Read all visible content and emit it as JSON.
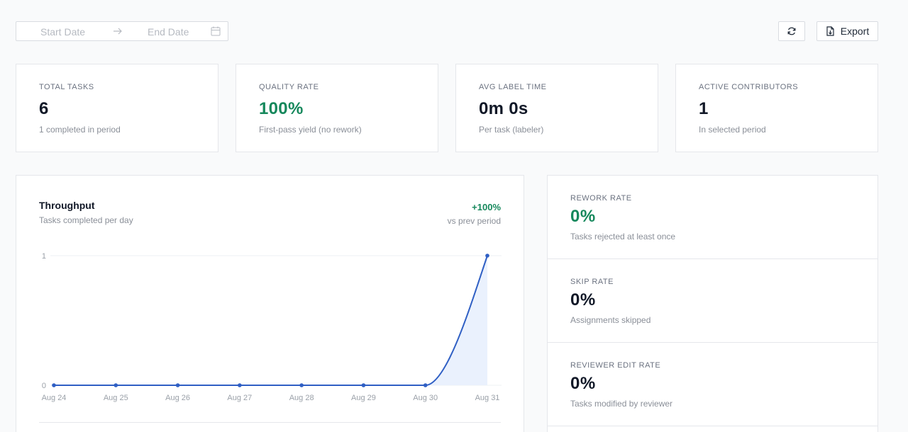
{
  "toolbar": {
    "start_placeholder": "Start Date",
    "end_placeholder": "End Date",
    "export_label": "Export"
  },
  "kpis": [
    {
      "label": "TOTAL TASKS",
      "value": "6",
      "sub": "1 completed in period"
    },
    {
      "label": "QUALITY RATE",
      "value": "100%",
      "sub": "First-pass yield (no rework)"
    },
    {
      "label": "AVG LABEL TIME",
      "value": "0m 0s",
      "sub": "Per task (labeler)"
    },
    {
      "label": "ACTIVE CONTRIBUTORS",
      "value": "1",
      "sub": "In selected period"
    }
  ],
  "throughput": {
    "title": "Throughput",
    "subtitle": "Tasks completed per day",
    "change": "+100%",
    "change_caption": "vs prev period"
  },
  "rates": [
    {
      "label": "REWORK RATE",
      "value": "0%",
      "sub": "Tasks rejected at least once"
    },
    {
      "label": "SKIP RATE",
      "value": "0%",
      "sub": "Assignments skipped"
    },
    {
      "label": "REVIEWER EDIT RATE",
      "value": "0%",
      "sub": "Tasks modified by reviewer"
    }
  ],
  "colors": {
    "accent_green": "#16885c",
    "line_blue": "#2f5fc4",
    "area_fill": "#eaf1fd"
  },
  "chart_data": {
    "type": "line",
    "categories": [
      "Aug 24",
      "Aug 25",
      "Aug 26",
      "Aug 27",
      "Aug 28",
      "Aug 29",
      "Aug 30",
      "Aug 31"
    ],
    "values": [
      0,
      0,
      0,
      0,
      0,
      0,
      0,
      1
    ],
    "yticks": [
      "0",
      "1"
    ],
    "ylim": [
      0,
      1
    ],
    "grid": "horizontal",
    "area_fill": true
  }
}
